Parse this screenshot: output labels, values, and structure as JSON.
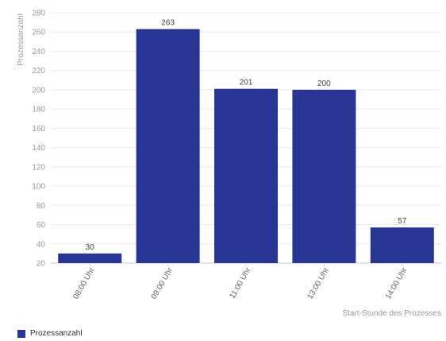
{
  "chart_data": {
    "type": "bar",
    "categories": [
      "08:00 Uhr",
      "09:00 Uhr",
      "11:00 Uhr",
      "13:00 Uhr",
      "14:00 Uhr"
    ],
    "series": [
      {
        "name": "Prozessanzahl",
        "values": [
          30,
          263,
          201,
          200,
          57
        ]
      }
    ],
    "ylim": [
      20,
      280
    ],
    "yticks": [
      20,
      40,
      60,
      80,
      100,
      120,
      140,
      160,
      180,
      200,
      220,
      240,
      260,
      280
    ],
    "ylabel": "Prozessanzahl",
    "xlabel": "Start-Stunde des Prozesses",
    "grid": true,
    "legend_position": "bottom-left",
    "bar_color": "#283593",
    "data_labels": true
  }
}
